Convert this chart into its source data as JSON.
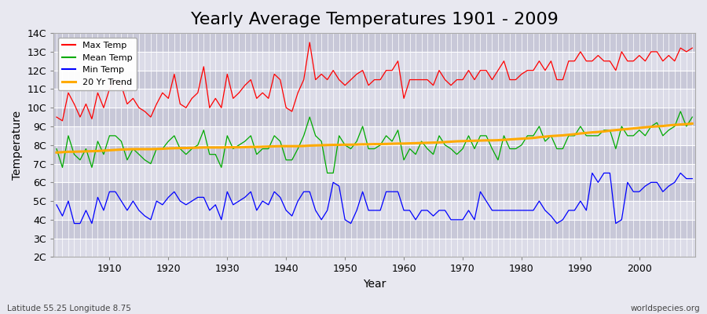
{
  "title": "Yearly Average Temperatures 1901 - 2009",
  "xlabel": "Year",
  "ylabel": "Temperature",
  "subtitle_left": "Latitude 55.25 Longitude 8.75",
  "subtitle_right": "worldspecies.org",
  "years": [
    1901,
    1902,
    1903,
    1904,
    1905,
    1906,
    1907,
    1908,
    1909,
    1910,
    1911,
    1912,
    1913,
    1914,
    1915,
    1916,
    1917,
    1918,
    1919,
    1920,
    1921,
    1922,
    1923,
    1924,
    1925,
    1926,
    1927,
    1928,
    1929,
    1930,
    1931,
    1932,
    1933,
    1934,
    1935,
    1936,
    1937,
    1938,
    1939,
    1940,
    1941,
    1942,
    1943,
    1944,
    1945,
    1946,
    1947,
    1948,
    1949,
    1950,
    1951,
    1952,
    1953,
    1954,
    1955,
    1956,
    1957,
    1958,
    1959,
    1960,
    1961,
    1962,
    1963,
    1964,
    1965,
    1966,
    1967,
    1968,
    1969,
    1970,
    1971,
    1972,
    1973,
    1974,
    1975,
    1976,
    1977,
    1978,
    1979,
    1980,
    1981,
    1982,
    1983,
    1984,
    1985,
    1986,
    1987,
    1988,
    1989,
    1990,
    1991,
    1992,
    1993,
    1994,
    1995,
    1996,
    1997,
    1998,
    1999,
    2000,
    2001,
    2002,
    2003,
    2004,
    2005,
    2006,
    2007,
    2008,
    2009
  ],
  "max_temp": [
    9.5,
    9.3,
    10.8,
    10.2,
    9.5,
    10.2,
    9.4,
    10.8,
    10.0,
    11.0,
    11.5,
    11.2,
    10.2,
    10.5,
    10.0,
    9.8,
    9.5,
    10.2,
    10.8,
    10.5,
    11.8,
    10.2,
    10.0,
    10.5,
    10.8,
    12.2,
    10.0,
    10.5,
    10.0,
    11.8,
    10.5,
    10.8,
    11.2,
    11.5,
    10.5,
    10.8,
    10.5,
    11.8,
    11.5,
    10.0,
    9.8,
    10.8,
    11.5,
    13.5,
    11.5,
    11.8,
    11.5,
    12.0,
    11.5,
    11.2,
    11.5,
    11.8,
    12.0,
    11.2,
    11.5,
    11.5,
    12.0,
    12.0,
    12.5,
    10.5,
    11.5,
    11.5,
    11.5,
    11.5,
    11.2,
    12.0,
    11.5,
    11.2,
    11.5,
    11.5,
    12.0,
    11.5,
    12.0,
    12.0,
    11.5,
    12.0,
    12.5,
    11.5,
    11.5,
    11.8,
    12.0,
    12.0,
    12.5,
    12.0,
    12.5,
    11.5,
    11.5,
    12.5,
    12.5,
    13.0,
    12.5,
    12.5,
    12.8,
    12.5,
    12.5,
    12.0,
    13.0,
    12.5,
    12.5,
    12.8,
    12.5,
    13.0,
    13.0,
    12.5,
    12.8,
    12.5,
    13.2,
    13.0,
    13.2
  ],
  "mean_temp": [
    7.8,
    6.8,
    8.5,
    7.5,
    7.2,
    7.8,
    6.8,
    8.2,
    7.5,
    8.5,
    8.5,
    8.2,
    7.2,
    7.8,
    7.5,
    7.2,
    7.0,
    7.8,
    7.8,
    8.2,
    8.5,
    7.8,
    7.5,
    7.8,
    8.0,
    8.8,
    7.5,
    7.5,
    6.8,
    8.5,
    7.8,
    8.0,
    8.2,
    8.5,
    7.5,
    7.8,
    7.8,
    8.5,
    8.2,
    7.2,
    7.2,
    7.8,
    8.5,
    9.5,
    8.5,
    8.2,
    6.5,
    6.5,
    8.5,
    8.0,
    7.8,
    8.2,
    9.0,
    7.8,
    7.8,
    8.0,
    8.5,
    8.2,
    8.8,
    7.2,
    7.8,
    7.5,
    8.2,
    7.8,
    7.5,
    8.5,
    8.0,
    7.8,
    7.5,
    7.8,
    8.5,
    7.8,
    8.5,
    8.5,
    7.8,
    7.2,
    8.5,
    7.8,
    7.8,
    8.0,
    8.5,
    8.5,
    9.0,
    8.2,
    8.5,
    7.8,
    7.8,
    8.5,
    8.5,
    9.0,
    8.5,
    8.5,
    8.5,
    8.8,
    8.8,
    7.8,
    9.0,
    8.5,
    8.5,
    8.8,
    8.5,
    9.0,
    9.2,
    8.5,
    8.8,
    9.0,
    9.8,
    9.0,
    9.5
  ],
  "min_temp": [
    4.8,
    4.2,
    5.0,
    3.8,
    3.8,
    4.5,
    3.8,
    5.2,
    4.5,
    5.5,
    5.5,
    5.0,
    4.5,
    5.0,
    4.5,
    4.2,
    4.0,
    5.0,
    4.8,
    5.2,
    5.5,
    5.0,
    4.8,
    5.0,
    5.2,
    5.2,
    4.5,
    4.8,
    4.0,
    5.5,
    4.8,
    5.0,
    5.2,
    5.5,
    4.5,
    5.0,
    4.8,
    5.5,
    5.2,
    4.5,
    4.2,
    5.0,
    5.5,
    5.5,
    4.5,
    4.0,
    4.5,
    6.0,
    5.8,
    4.0,
    3.8,
    4.5,
    5.5,
    4.5,
    4.5,
    4.5,
    5.5,
    5.5,
    5.5,
    4.5,
    4.5,
    4.0,
    4.5,
    4.5,
    4.2,
    4.5,
    4.5,
    4.0,
    4.0,
    4.0,
    4.5,
    4.0,
    5.5,
    5.0,
    4.5,
    4.5,
    4.5,
    4.5,
    4.5,
    4.5,
    4.5,
    4.5,
    5.0,
    4.5,
    4.2,
    3.8,
    4.0,
    4.5,
    4.5,
    5.0,
    4.5,
    6.5,
    6.0,
    6.5,
    6.5,
    3.8,
    4.0,
    6.0,
    5.5,
    5.5,
    5.8,
    6.0,
    6.0,
    5.5,
    5.8,
    6.0,
    6.5,
    6.2,
    6.2
  ],
  "trend": [
    7.6,
    7.62,
    7.64,
    7.64,
    7.65,
    7.66,
    7.67,
    7.68,
    7.7,
    7.72,
    7.74,
    7.76,
    7.77,
    7.78,
    7.78,
    7.78,
    7.78,
    7.79,
    7.8,
    7.82,
    7.83,
    7.84,
    7.84,
    7.85,
    7.86,
    7.87,
    7.87,
    7.87,
    7.87,
    7.88,
    7.88,
    7.88,
    7.89,
    7.9,
    7.9,
    7.91,
    7.92,
    7.93,
    7.94,
    7.94,
    7.94,
    7.94,
    7.95,
    7.97,
    7.98,
    7.99,
    8.0,
    8.01,
    8.01,
    8.02,
    8.02,
    8.03,
    8.04,
    8.04,
    8.05,
    8.05,
    8.06,
    8.07,
    8.08,
    8.08,
    8.09,
    8.1,
    8.11,
    8.12,
    8.13,
    8.14,
    8.16,
    8.18,
    8.2,
    8.21,
    8.22,
    8.23,
    8.24,
    8.25,
    8.25,
    8.26,
    8.28,
    8.3,
    8.32,
    8.34,
    8.36,
    8.38,
    8.42,
    8.45,
    8.48,
    8.5,
    8.52,
    8.55,
    8.58,
    8.62,
    8.65,
    8.68,
    8.7,
    8.73,
    8.77,
    8.8,
    8.83,
    8.86,
    8.89,
    8.92,
    8.95,
    8.98,
    9.0,
    9.02,
    9.05,
    9.08,
    9.1,
    9.12,
    9.15
  ],
  "max_color": "#ff0000",
  "mean_color": "#00aa00",
  "min_color": "#0000ff",
  "trend_color": "#ffaa00",
  "bg_color": "#e8e8f0",
  "plot_bg_color_light": "#dcdce8",
  "plot_bg_color_dark": "#c8c8d8",
  "grid_color": "#ffffff",
  "title_fontsize": 16,
  "label_fontsize": 10,
  "tick_fontsize": 9,
  "ylim": [
    2,
    14
  ],
  "yticks": [
    2,
    3,
    4,
    5,
    6,
    7,
    8,
    9,
    10,
    11,
    12,
    13,
    14
  ],
  "ytick_labels": [
    "2C",
    "3C",
    "4C",
    "5C",
    "6C",
    "7C",
    "8C",
    "9C",
    "10C",
    "11C",
    "12C",
    "13C",
    "14C"
  ],
  "xticks": [
    1910,
    1920,
    1930,
    1940,
    1950,
    1960,
    1970,
    1980,
    1990,
    2000
  ]
}
